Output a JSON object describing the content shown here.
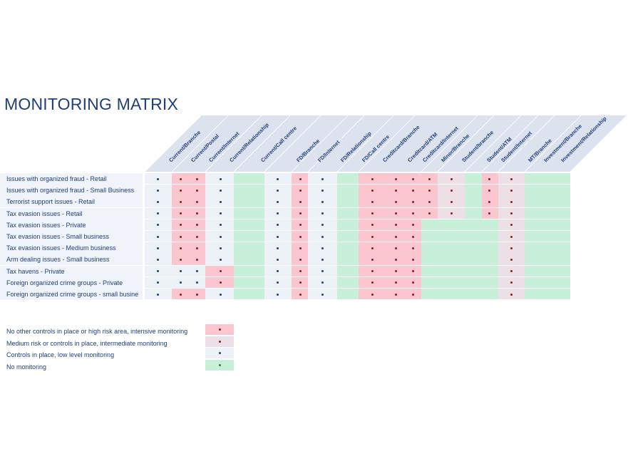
{
  "title": "MONITORING MATRIX",
  "columns": [
    "Current/Branche",
    "Current/Postal",
    "Current/Internet",
    "Current/Relationship",
    "Current/Call centre",
    "FD/Branche",
    "FD/Internet",
    "FD/Relationship",
    "FD/Call centre",
    "Creditcard/Branche",
    "Creditcard/ATM",
    "Creditcard/Internet",
    "Minor/Branche",
    "Student/branche",
    "Student/ATM",
    "Student/Internet",
    "MT/Branche",
    "Investment/Branche",
    "Investment/Relationship"
  ],
  "rows": [
    {
      "label": "Issues with organized fraud - Retail"
    },
    {
      "label": "Issues with organized fraud - Small Business"
    },
    {
      "label": "Terrorist support issues - Retail"
    },
    {
      "label": "Tax evasion issues - Retail"
    },
    {
      "label": "Tax evasion issues - Private"
    },
    {
      "label": "Tax evasion issues - Small business"
    },
    {
      "label": "Tax evasion issues - Medium business"
    },
    {
      "label": "Arm dealing issues - Small business"
    },
    {
      "label": "Tax havens - Private"
    },
    {
      "label": "Foreign organized crime groups - Private"
    },
    {
      "label": "Foreign organized crime groups - small busine"
    }
  ],
  "colors": {
    "high": "#fbc6cf",
    "medium": "#ece0e6",
    "low": "#edf1f8",
    "none": "#c8efd8",
    "dot_high": "#8b1a1a",
    "dot_low": "#1f3f7a",
    "header_band": "#dde3ee",
    "label_bg": "#f0f3fa",
    "text": "#1f3f7a"
  },
  "legend": [
    {
      "label": "No other controls in place or high risk area, intensive monitoring",
      "level": "high"
    },
    {
      "label": "Medium risk or controls in place, intermediate monitoring",
      "level": "medium"
    },
    {
      "label": "Controls in place, low level monitoring",
      "level": "low"
    },
    {
      "label": "No monitoring",
      "level": "none"
    }
  ]
}
